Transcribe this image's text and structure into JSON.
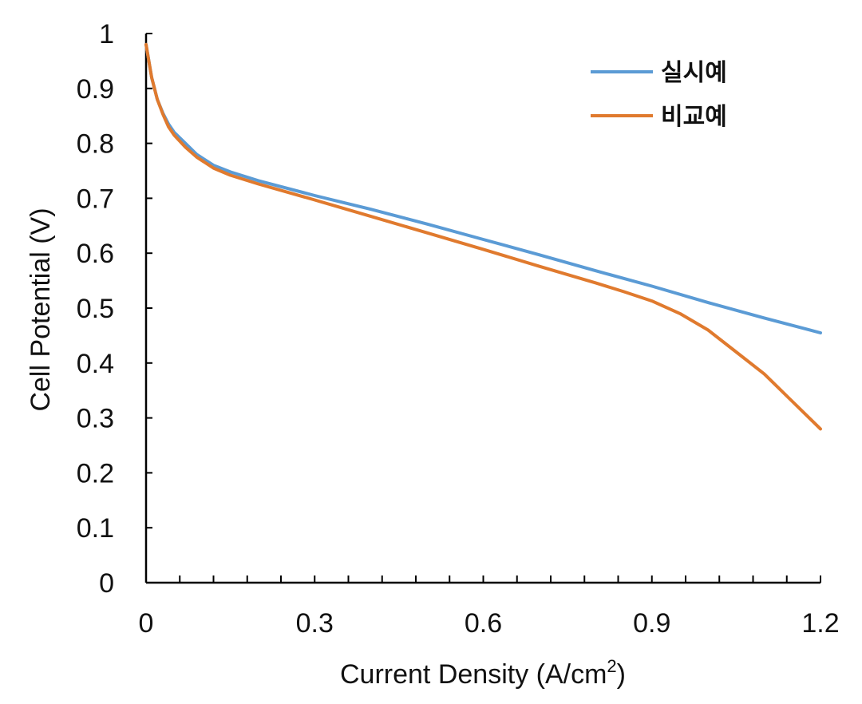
{
  "chart_data": {
    "type": "line",
    "xlabel": "Current Density (A/cm2)",
    "xlabel_main": "Current Density (A/cm",
    "xlabel_sup": "2",
    "xlabel_end": ")",
    "ylabel": "Cell Potential (V)",
    "xlim": [
      0,
      1.2
    ],
    "ylim": [
      0,
      1
    ],
    "x_ticks": [
      "0",
      "0.3",
      "0.6",
      "0.9",
      "1.2"
    ],
    "x_tick_values": [
      0,
      0.3,
      0.6,
      0.9,
      1.2
    ],
    "x_minor_step": 0.06,
    "y_ticks": [
      "0",
      "0.1",
      "0.2",
      "0.3",
      "0.4",
      "0.5",
      "0.6",
      "0.7",
      "0.8",
      "0.9",
      "1"
    ],
    "y_tick_values": [
      0,
      0.1,
      0.2,
      0.3,
      0.4,
      0.5,
      0.6,
      0.7,
      0.8,
      0.9,
      1.0
    ],
    "grid": false,
    "legend_position": "top-right",
    "series": [
      {
        "name": "실시예",
        "color": "#5B9BD5",
        "x": [
          0,
          0.005,
          0.01,
          0.02,
          0.03,
          0.04,
          0.05,
          0.07,
          0.09,
          0.12,
          0.15,
          0.2,
          0.3,
          0.4,
          0.5,
          0.6,
          0.7,
          0.8,
          0.9,
          1.0,
          1.1,
          1.2
        ],
        "y": [
          0.98,
          0.95,
          0.92,
          0.88,
          0.855,
          0.835,
          0.82,
          0.8,
          0.78,
          0.76,
          0.748,
          0.732,
          0.705,
          0.68,
          0.653,
          0.625,
          0.597,
          0.568,
          0.54,
          0.51,
          0.482,
          0.455
        ]
      },
      {
        "name": "비교예",
        "color": "#E07A2E",
        "x": [
          0,
          0.005,
          0.01,
          0.02,
          0.03,
          0.04,
          0.05,
          0.07,
          0.09,
          0.12,
          0.15,
          0.2,
          0.3,
          0.4,
          0.5,
          0.6,
          0.7,
          0.8,
          0.85,
          0.9,
          0.95,
          1.0,
          1.05,
          1.1,
          1.15,
          1.2
        ],
        "y": [
          0.98,
          0.95,
          0.92,
          0.88,
          0.853,
          0.83,
          0.815,
          0.793,
          0.775,
          0.755,
          0.742,
          0.726,
          0.697,
          0.667,
          0.637,
          0.607,
          0.576,
          0.546,
          0.53,
          0.513,
          0.49,
          0.46,
          0.42,
          0.38,
          0.33,
          0.28
        ]
      }
    ]
  }
}
